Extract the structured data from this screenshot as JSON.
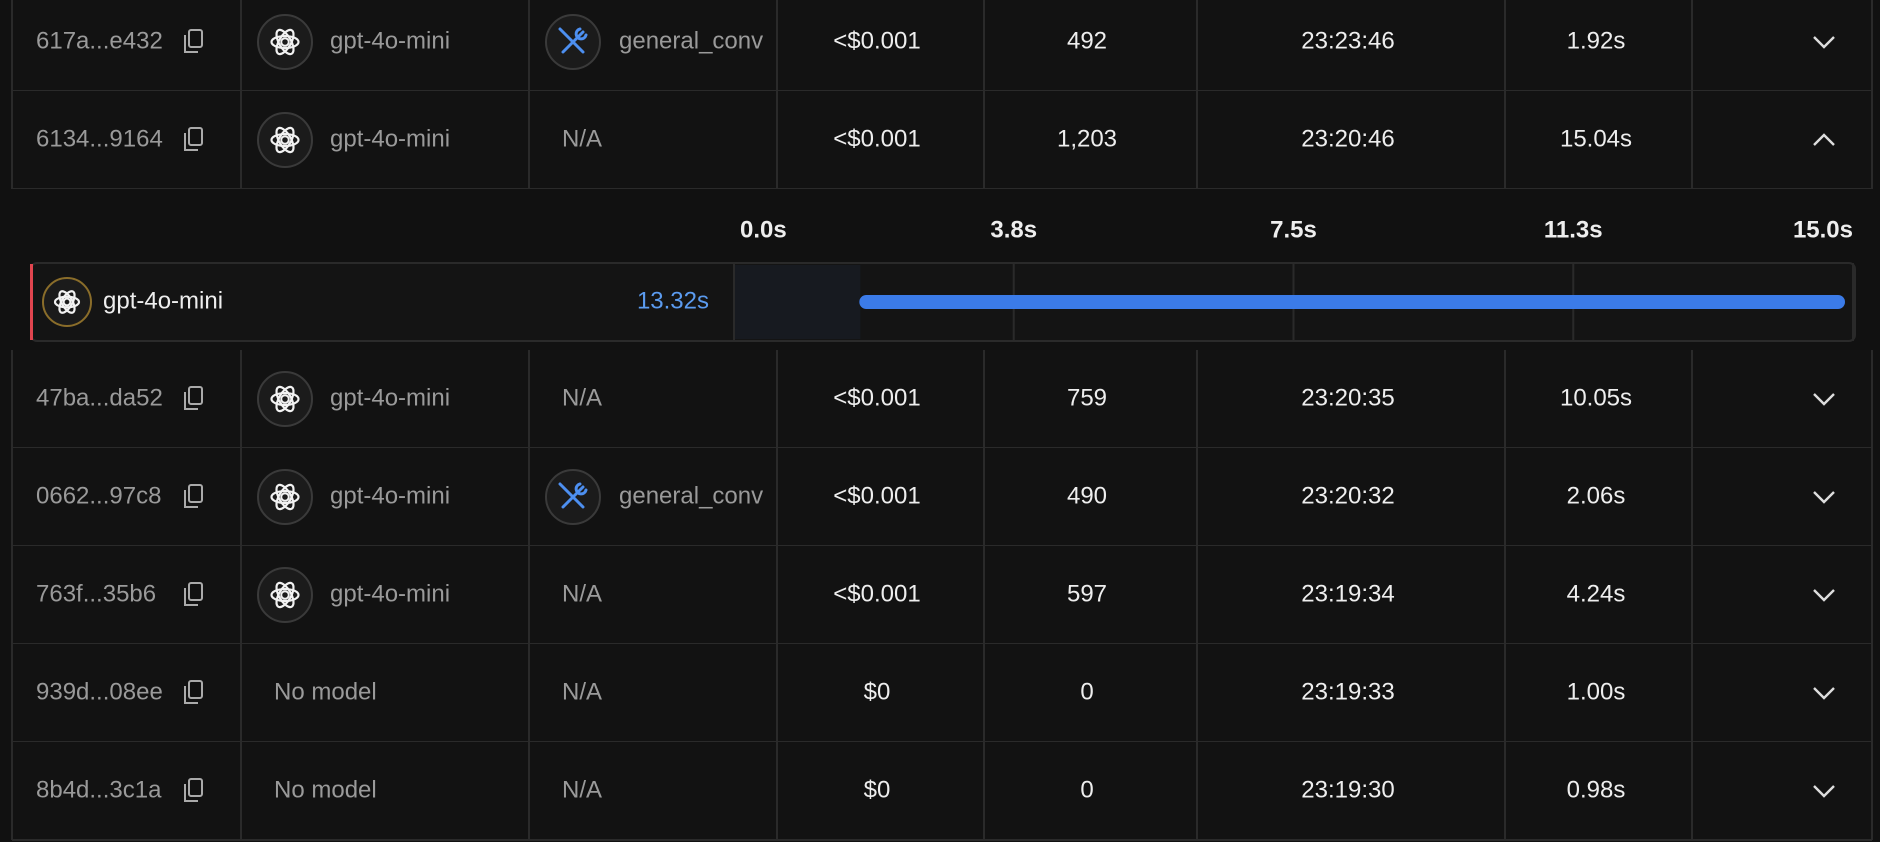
{
  "rows": [
    {
      "id": "617a...e432",
      "model": "gpt-4o-mini",
      "tool": "general_conv",
      "cost": "<$0.001",
      "tokens": "492",
      "time": "23:23:46",
      "latency": "1.92s",
      "expanded": false
    },
    {
      "id": "6134...9164",
      "model": "gpt-4o-mini",
      "tool": "N/A",
      "cost": "<$0.001",
      "tokens": "1,203",
      "time": "23:20:46",
      "latency": "15.04s",
      "expanded": true
    },
    {
      "id": "47ba...da52",
      "model": "gpt-4o-mini",
      "tool": "N/A",
      "cost": "<$0.001",
      "tokens": "759",
      "time": "23:20:35",
      "latency": "10.05s",
      "expanded": false
    },
    {
      "id": "0662...97c8",
      "model": "gpt-4o-mini",
      "tool": "general_conv",
      "cost": "<$0.001",
      "tokens": "490",
      "time": "23:20:32",
      "latency": "2.06s",
      "expanded": false
    },
    {
      "id": "763f...35b6",
      "model": "gpt-4o-mini",
      "tool": "N/A",
      "cost": "<$0.001",
      "tokens": "597",
      "time": "23:19:34",
      "latency": "4.24s",
      "expanded": false
    },
    {
      "id": "939d...08ee",
      "model": "No model",
      "tool": "N/A",
      "cost": "$0",
      "tokens": "0",
      "time": "23:19:33",
      "latency": "1.00s",
      "expanded": false
    },
    {
      "id": "8b4d...3c1a",
      "model": "No model",
      "tool": "N/A",
      "cost": "$0",
      "tokens": "0",
      "time": "23:19:30",
      "latency": "0.98s",
      "expanded": false
    }
  ],
  "timeline": {
    "ticks": [
      {
        "value": 0,
        "label": "0.0s"
      },
      {
        "value": 3.75,
        "label": "3.8s"
      },
      {
        "value": 7.5,
        "label": "7.5s"
      },
      {
        "value": 11.25,
        "label": "11.3s"
      },
      {
        "value": 15,
        "label": "15.0s"
      }
    ],
    "span": {
      "name": "gpt-4o-mini",
      "duration": {
        "value": 13.32,
        "label": "13.32s"
      }
    }
  }
}
